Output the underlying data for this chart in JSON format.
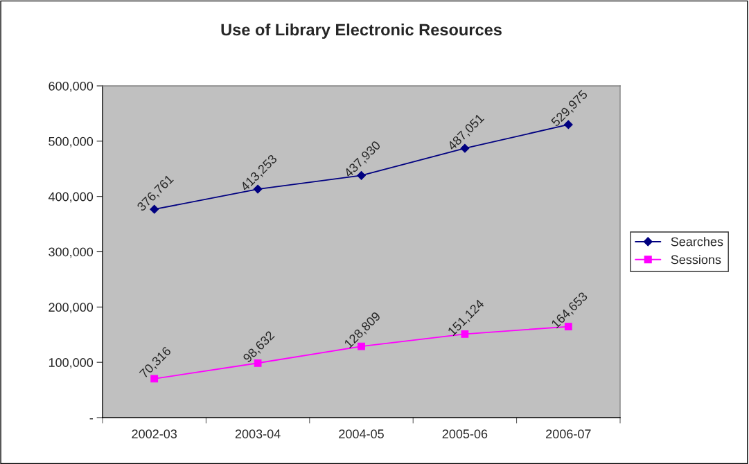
{
  "chart_data": {
    "type": "line",
    "title": "Use of Library Electronic Resources",
    "categories": [
      "2002-03",
      "2003-04",
      "2004-05",
      "2005-06",
      "2006-07"
    ],
    "series": [
      {
        "name": "Searches",
        "color": "#000080",
        "marker": "diamond",
        "values": [
          376761,
          413253,
          437930,
          487051,
          529975
        ],
        "value_labels": [
          "376,761",
          "413,253",
          "437,930",
          "487,051",
          "529,975"
        ]
      },
      {
        "name": "Sessions",
        "color": "#ff00ff",
        "marker": "square",
        "values": [
          70316,
          98632,
          128809,
          151124,
          164653
        ],
        "value_labels": [
          "70,316",
          "98,632",
          "128,809",
          "151,124",
          "164,653"
        ]
      }
    ],
    "ylim": [
      0,
      600000
    ],
    "yticks": [
      {
        "value": 0,
        "label": "-"
      },
      {
        "value": 100000,
        "label": "100,000"
      },
      {
        "value": 200000,
        "label": "200,000"
      },
      {
        "value": 300000,
        "label": "300,000"
      },
      {
        "value": 400000,
        "label": "400,000"
      },
      {
        "value": 500000,
        "label": "500,000"
      },
      {
        "value": 600000,
        "label": "600,000"
      }
    ],
    "legend": "right"
  }
}
